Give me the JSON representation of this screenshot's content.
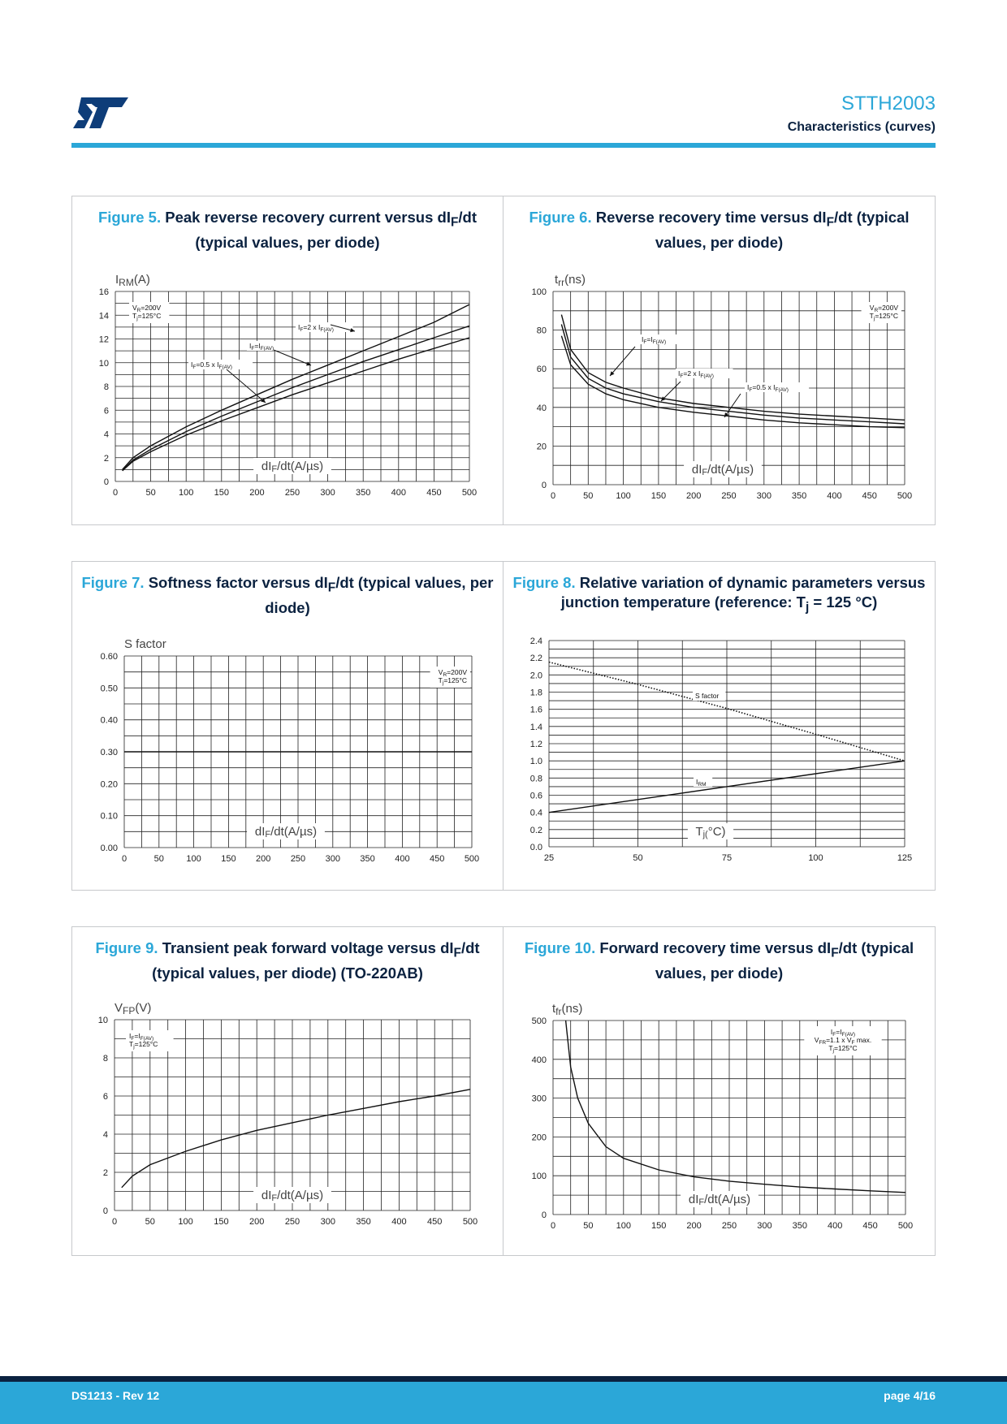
{
  "header": {
    "title": "STTH2003",
    "subtitle": "Characteristics (curves)"
  },
  "footer": {
    "doc": "DS1213 - Rev 12",
    "page": "page 4/16"
  },
  "captions": [
    {
      "fig": "Figure 5.",
      "pre": "Peak reverse recovery current versus dI",
      "sub": "F",
      "post": "/dt (typical values, per diode)"
    },
    {
      "fig": "Figure 6.",
      "pre": "Reverse recovery time versus dI",
      "sub": "F",
      "post": "/dt (typical values, per diode)"
    },
    {
      "fig": "Figure 7.",
      "pre": "Softness factor versus dI",
      "sub": "F",
      "post": "/dt (typical values, per diode)"
    },
    {
      "fig": "Figure 8.",
      "pre": "Relative variation of dynamic parameters versus junction temperature (reference: T",
      "sub": "j",
      "post": " = 125 °C)"
    },
    {
      "fig": "Figure 9.",
      "pre": "Transient peak forward voltage versus dI",
      "sub": "F",
      "post": "/dt (typical values, per diode) (TO-220AB)"
    },
    {
      "fig": "Figure 10.",
      "pre": "Forward recovery time versus dI",
      "sub": "F",
      "post": "/dt (typical values, per diode)"
    }
  ],
  "chart_data": [
    {
      "type": "line",
      "ylabel": {
        "main": "I",
        "sub": "RM",
        "unit": "(A)"
      },
      "xlabel": "dI_F/dt(A/µs)",
      "xlim": [
        0,
        500
      ],
      "ylim": [
        0,
        16
      ],
      "xticks": [
        "0",
        "50",
        "100",
        "150",
        "200",
        "250",
        "300",
        "350",
        "400",
        "450",
        "500"
      ],
      "yticks": [
        "0",
        "2",
        "4",
        "6",
        "8",
        "10",
        "12",
        "14",
        "16"
      ],
      "conditions": [
        "V_R=200V",
        "T_j=125°C"
      ],
      "series": [
        {
          "name": "I_F=2 x I_F(AV)",
          "x": [
            10,
            25,
            50,
            100,
            150,
            200,
            250,
            300,
            350,
            400,
            450,
            500
          ],
          "y": [
            1.0,
            2.0,
            3.0,
            4.6,
            6.0,
            7.3,
            8.6,
            9.8,
            11.0,
            12.2,
            13.4,
            14.9
          ]
        },
        {
          "name": "I_F=I_F(AV)",
          "x": [
            10,
            25,
            50,
            100,
            150,
            200,
            250,
            300,
            350,
            400,
            450,
            500
          ],
          "y": [
            0.9,
            1.8,
            2.7,
            4.2,
            5.5,
            6.7,
            7.9,
            9.0,
            10.1,
            11.1,
            12.1,
            13.1
          ]
        },
        {
          "name": "I_F=0.5 x I_F(AV)",
          "x": [
            10,
            25,
            50,
            100,
            150,
            200,
            250,
            300,
            350,
            400,
            450,
            500
          ],
          "y": [
            0.9,
            1.7,
            2.5,
            3.9,
            5.1,
            6.2,
            7.3,
            8.3,
            9.3,
            10.3,
            11.2,
            12.1
          ]
        }
      ]
    },
    {
      "type": "line",
      "ylabel": {
        "main": "t",
        "sub": "rr",
        "unit": "(ns)"
      },
      "xlabel": "dI_F/dt(A/µs)",
      "xlim": [
        0,
        500
      ],
      "ylim": [
        0,
        100
      ],
      "xticks": [
        "0",
        "50",
        "100",
        "150",
        "200",
        "250",
        "300",
        "350",
        "400",
        "450",
        "500"
      ],
      "yticks": [
        "0",
        "20",
        "40",
        "60",
        "80",
        "100"
      ],
      "conditions": [
        "V_R=200V",
        "T_j=125°C"
      ],
      "series": [
        {
          "name": "I_F=I_F(AV)",
          "x": [
            12,
            25,
            50,
            75,
            100,
            150,
            200,
            250,
            300,
            350,
            400,
            450,
            500
          ],
          "y": [
            88,
            70,
            58,
            53,
            50,
            45,
            42,
            40,
            38,
            36.5,
            35.5,
            34.5,
            33.5
          ]
        },
        {
          "name": "I_F=2 x I_F(AV)",
          "x": [
            12,
            25,
            50,
            75,
            100,
            150,
            200,
            250,
            300,
            350,
            400,
            450,
            500
          ],
          "y": [
            83,
            66,
            55,
            50,
            47,
            43,
            40,
            38,
            36,
            34.5,
            33.5,
            32.5,
            31.5
          ]
        },
        {
          "name": "I_F=0.5 x I_F(AV)",
          "x": [
            12,
            25,
            50,
            75,
            100,
            150,
            200,
            250,
            300,
            350,
            400,
            450,
            500
          ],
          "y": [
            77,
            62,
            52,
            47,
            44,
            40,
            37.5,
            35.5,
            33.5,
            32,
            31,
            30,
            29.5
          ]
        }
      ]
    },
    {
      "type": "line",
      "ylabel": {
        "main": "S factor",
        "sub": "",
        "unit": ""
      },
      "xlabel": "dI_F/dt(A/µs)",
      "xlim": [
        0,
        500
      ],
      "ylim": [
        0,
        0.6
      ],
      "xticks": [
        "0",
        "50",
        "100",
        "150",
        "200",
        "250",
        "300",
        "350",
        "400",
        "450",
        "500"
      ],
      "yticks": [
        "0.00",
        "0.10",
        "0.20",
        "0.30",
        "0.40",
        "0.50",
        "0.60"
      ],
      "conditions": [
        "V_R=200V",
        "T_j=125°C"
      ],
      "series": [
        {
          "name": "",
          "x": [
            0,
            500
          ],
          "y": [
            0.3,
            0.3
          ]
        }
      ]
    },
    {
      "type": "line",
      "ylabel": {
        "main": "",
        "sub": "",
        "unit": ""
      },
      "xlabel": "T_j(°C)",
      "xlim": [
        25,
        125
      ],
      "ylim": [
        0,
        2.4
      ],
      "xticks": [
        "25",
        "50",
        "75",
        "100",
        "125"
      ],
      "yticks": [
        "0.0",
        "0.2",
        "0.4",
        "0.6",
        "0.8",
        "1.0",
        "1.2",
        "1.4",
        "1.6",
        "1.8",
        "2.0",
        "2.2",
        "2.4"
      ],
      "conditions": [],
      "series": [
        {
          "name": "S factor",
          "style": "dotted",
          "x": [
            25,
            50,
            75,
            100,
            125
          ],
          "y": [
            2.15,
            1.89,
            1.61,
            1.31,
            1.0
          ]
        },
        {
          "name": "I_RM",
          "style": "solid",
          "x": [
            25,
            50,
            75,
            100,
            125
          ],
          "y": [
            0.4,
            0.55,
            0.7,
            0.85,
            1.0
          ]
        }
      ]
    },
    {
      "type": "line",
      "ylabel": {
        "main": "V",
        "sub": "FP",
        "unit": "(V)"
      },
      "xlabel": "dI_F/dt(A/µs)",
      "xlim": [
        0,
        500
      ],
      "ylim": [
        0,
        10
      ],
      "xticks": [
        "0",
        "50",
        "100",
        "150",
        "200",
        "250",
        "300",
        "350",
        "400",
        "450",
        "500"
      ],
      "yticks": [
        "0",
        "2",
        "4",
        "6",
        "8",
        "10"
      ],
      "conditions": [
        "I_F=I_F(AV)",
        "T_j=125°C"
      ],
      "series": [
        {
          "name": "",
          "x": [
            10,
            25,
            50,
            100,
            150,
            200,
            250,
            300,
            350,
            400,
            450,
            500
          ],
          "y": [
            1.2,
            1.8,
            2.4,
            3.1,
            3.7,
            4.2,
            4.6,
            5.0,
            5.35,
            5.7,
            6.0,
            6.35
          ]
        }
      ]
    },
    {
      "type": "line",
      "ylabel": {
        "main": "t",
        "sub": "fr",
        "unit": "(ns)"
      },
      "xlabel": "dI_F/dt(A/µs)",
      "xlim": [
        0,
        500
      ],
      "ylim": [
        0,
        500
      ],
      "xticks": [
        "0",
        "50",
        "100",
        "150",
        "200",
        "250",
        "300",
        "350",
        "400",
        "450",
        "500"
      ],
      "yticks": [
        "0",
        "100",
        "200",
        "300",
        "400",
        "500"
      ],
      "conditions": [
        "I_F=I_F(AV)",
        "V_FR=1.1 x V_F max.",
        "T_j=125°C"
      ],
      "series": [
        {
          "name": "",
          "x": [
            18,
            25,
            35,
            50,
            75,
            100,
            150,
            200,
            250,
            300,
            350,
            400,
            450,
            500
          ],
          "y": [
            500,
            380,
            300,
            235,
            175,
            145,
            115,
            97,
            86,
            78,
            71,
            66,
            61,
            57
          ]
        }
      ]
    }
  ]
}
